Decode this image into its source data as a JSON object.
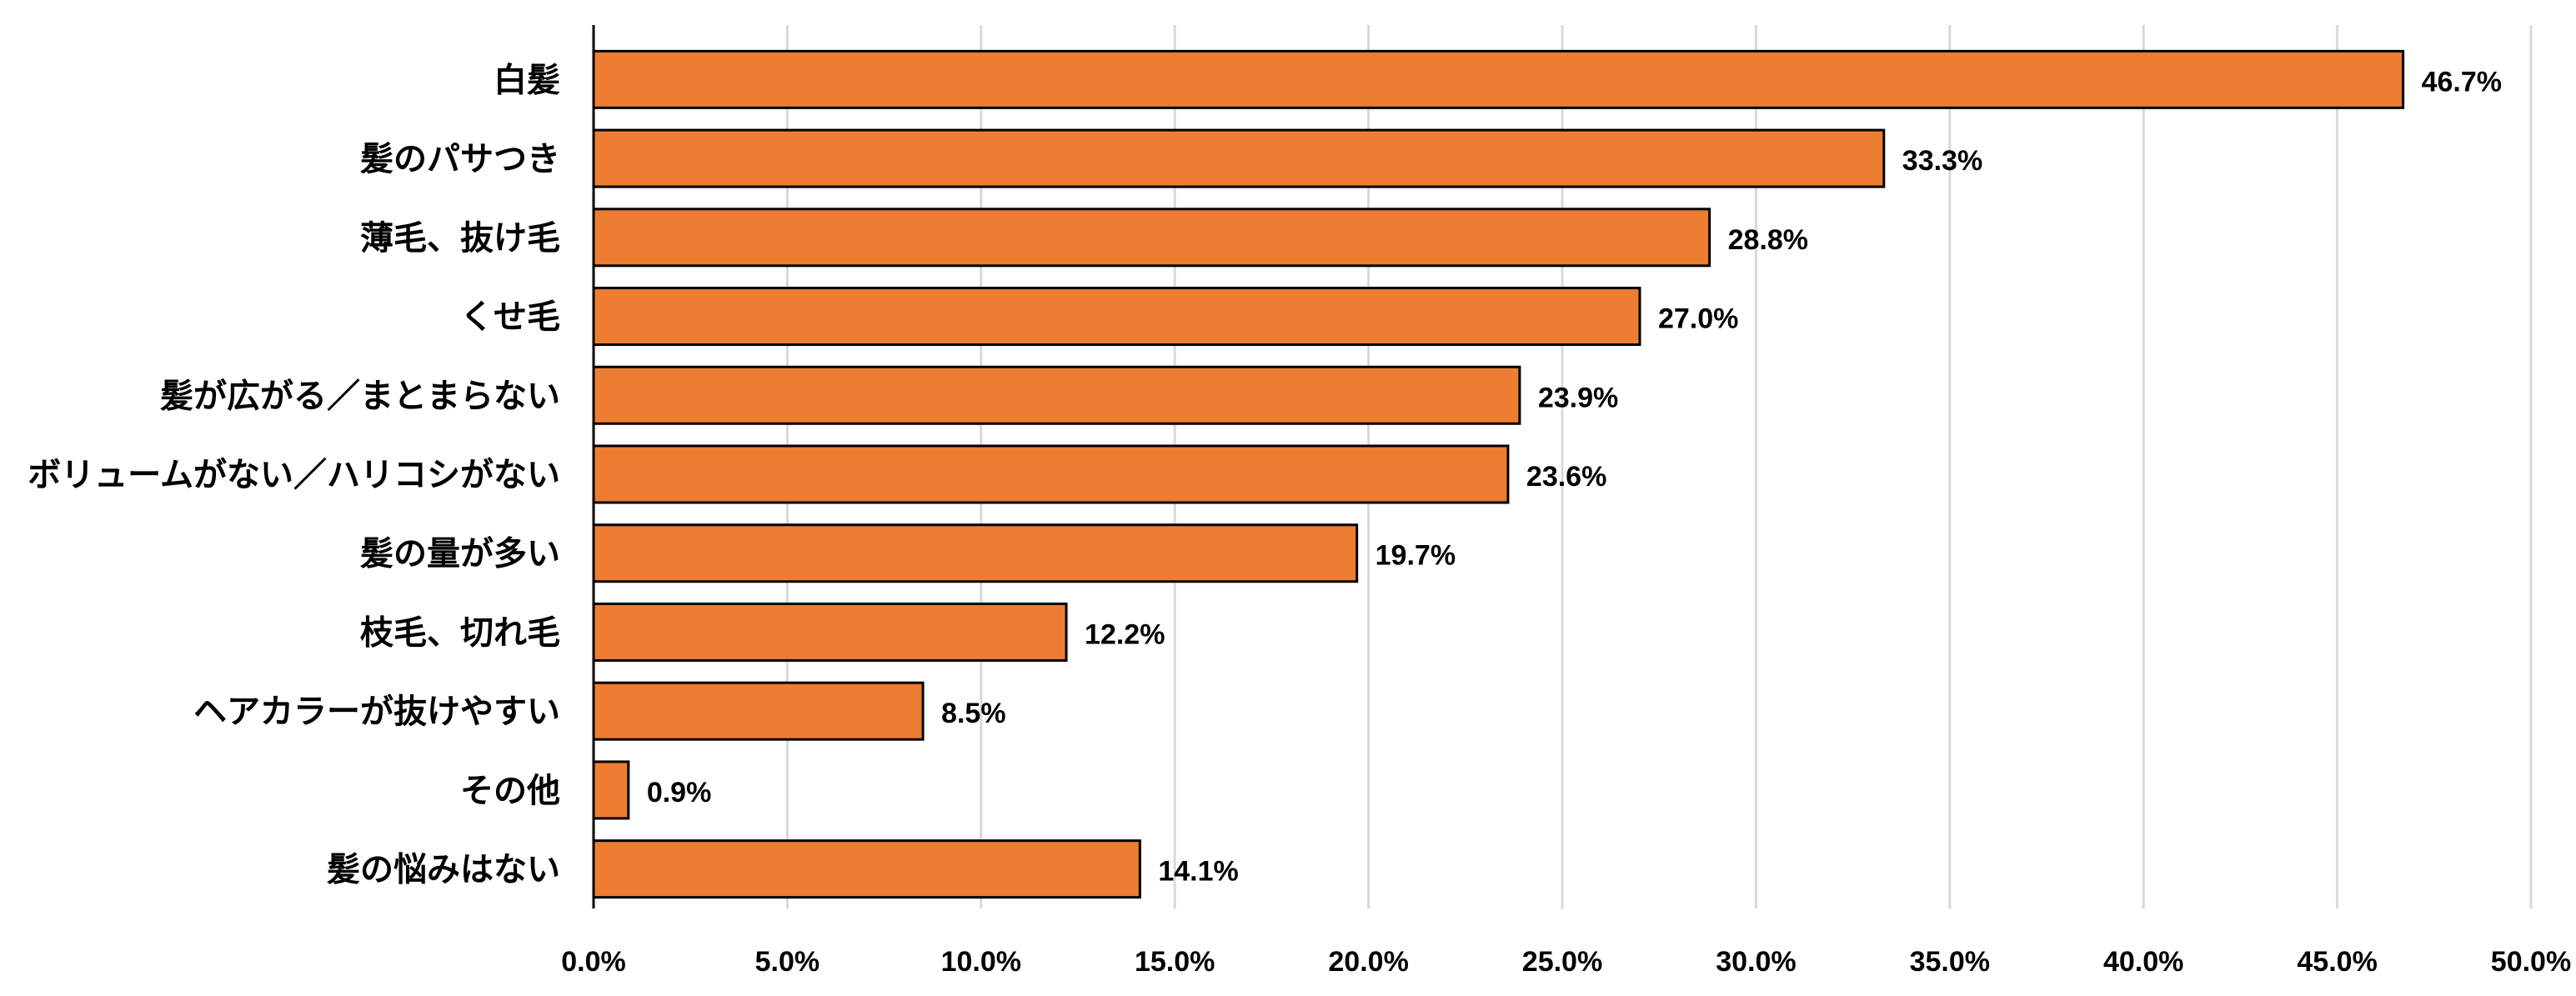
{
  "chart_data": {
    "type": "bar",
    "orientation": "horizontal",
    "categories": [
      "白髪",
      "髪のパサつき",
      "薄毛、抜け毛",
      "くせ毛",
      "髪が広がる／まとまらない",
      "ボリュームがない／ハリコシがない",
      "髪の量が多い",
      "枝毛、切れ毛",
      "ヘアカラーが抜けやすい",
      "その他",
      "髪の悩みはない"
    ],
    "values": [
      46.7,
      33.3,
      28.8,
      27.0,
      23.9,
      23.6,
      19.7,
      12.2,
      8.5,
      0.9,
      14.1
    ],
    "value_labels": [
      "46.7%",
      "33.3%",
      "28.8%",
      "27.0%",
      "23.9%",
      "23.6%",
      "19.7%",
      "12.2%",
      "8.5%",
      "0.9%",
      "14.1%"
    ],
    "xlim": [
      0,
      50
    ],
    "xticks": [
      0,
      5,
      10,
      15,
      20,
      25,
      30,
      35,
      40,
      45,
      50
    ],
    "xtick_labels": [
      "0.0%",
      "5.0%",
      "10.0%",
      "15.0%",
      "20.0%",
      "25.0%",
      "30.0%",
      "35.0%",
      "40.0%",
      "45.0%",
      "50.0%"
    ],
    "title": "",
    "xlabel": "",
    "ylabel": "",
    "grid": "vertical",
    "legend": "none",
    "bar_color": "#ED7D31",
    "bar_edge_color": "#000000",
    "grid_color": "#D9D9D9"
  }
}
